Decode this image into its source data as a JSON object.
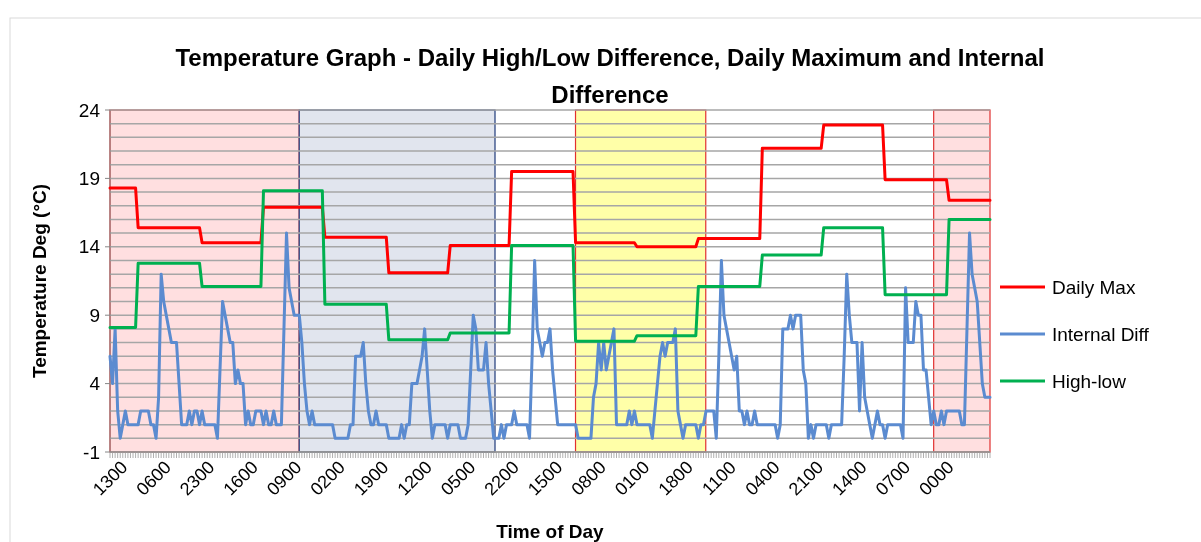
{
  "chart_data": {
    "type": "line",
    "title": "Temperature Graph - Daily High/Low Difference, Daily Maximum and Internal Difference",
    "xlabel": "Time of Day",
    "ylabel": "Temperature Deg (°C)",
    "categories": [
      "1300",
      null,
      null,
      null,
      null,
      null,
      null,
      null,
      null,
      null,
      null,
      null,
      null,
      null,
      null,
      null,
      null,
      "0600",
      null,
      null,
      null,
      null,
      null,
      null,
      null,
      null,
      null,
      null,
      null,
      null,
      null,
      null,
      null,
      null,
      "2300",
      null,
      null,
      null,
      null,
      null,
      null,
      null,
      null,
      null,
      null,
      null,
      null,
      null,
      null,
      null,
      null,
      "1600",
      null,
      null,
      null,
      null,
      null,
      null,
      null,
      null,
      null,
      null,
      null,
      null,
      null,
      null,
      null,
      null,
      "0900",
      null,
      null,
      null,
      null,
      null,
      null,
      null,
      null,
      null,
      null,
      null,
      null,
      null,
      null,
      null,
      null,
      "0200",
      null,
      null,
      null,
      null,
      null,
      null,
      null,
      null,
      null,
      null,
      null,
      null,
      null,
      null,
      null,
      null,
      "1900",
      null,
      null,
      null,
      null,
      null,
      null,
      null,
      null,
      null,
      null,
      null,
      null,
      null,
      null,
      null,
      null,
      "1200",
      null,
      null,
      null,
      null,
      null,
      null,
      null,
      null,
      null,
      null,
      null,
      null,
      null,
      null,
      null,
      null,
      "0500",
      null,
      null,
      null,
      null,
      null,
      null,
      null,
      null,
      null,
      null,
      null,
      null,
      null,
      null,
      null,
      null,
      "2200",
      null,
      null,
      null,
      null,
      null,
      null,
      null,
      null,
      null,
      null,
      null,
      null,
      null,
      null,
      null,
      null,
      "1500",
      null,
      null,
      null,
      null,
      null,
      null,
      null,
      null,
      null,
      null,
      null,
      null,
      null,
      null,
      null,
      null,
      "0800",
      null,
      null,
      null,
      null,
      null,
      null,
      null,
      null,
      null,
      null,
      null,
      null,
      null,
      null,
      null,
      null,
      "0100",
      null,
      null,
      null,
      null,
      null,
      null,
      null,
      null,
      null,
      null,
      null,
      null,
      null,
      null,
      null,
      null,
      "1800",
      null,
      null,
      null,
      null,
      null,
      null,
      null,
      null,
      null,
      null,
      null,
      null,
      null,
      null,
      null,
      null,
      "1100",
      null,
      null,
      null,
      null,
      null,
      null,
      null,
      null,
      null,
      null,
      null,
      null,
      null,
      null,
      null,
      null,
      "0400",
      null,
      null,
      null,
      null,
      null,
      null,
      null,
      null,
      null,
      null,
      null,
      null,
      null,
      null,
      null,
      null,
      "2100",
      null,
      null,
      null,
      null,
      null,
      null,
      null,
      null,
      null,
      null,
      null,
      null,
      null,
      null,
      null,
      null,
      "1400",
      null,
      null,
      null,
      null,
      null,
      null,
      null,
      null,
      null,
      null,
      null,
      null,
      null,
      null,
      null,
      null,
      "0700",
      null,
      null,
      null,
      null,
      null,
      null,
      null,
      null,
      null,
      null,
      null,
      null,
      null,
      null,
      null,
      null,
      "0000",
      null,
      null,
      null,
      null,
      null,
      null,
      null,
      null,
      null,
      null,
      null,
      null,
      null,
      null,
      null,
      null,
      null,
      null,
      null,
      null,
      null
    ],
    "ylim": [
      -1,
      24
    ],
    "yticks": [
      -1,
      {
        "value": 0,
        "label": null
      },
      {
        "value": 1,
        "label": null
      },
      {
        "value": 2,
        "label": null
      },
      {
        "value": 3,
        "label": null
      },
      4,
      {
        "value": 5,
        "label": null
      },
      {
        "value": 6,
        "label": null
      },
      {
        "value": 7,
        "label": null
      },
      {
        "value": 8,
        "label": null
      },
      9,
      {
        "value": 10,
        "label": null
      },
      {
        "value": 11,
        "label": null
      },
      {
        "value": 12,
        "label": null
      },
      {
        "value": 13,
        "label": null
      },
      14,
      {
        "value": 15,
        "label": null
      },
      {
        "value": 16,
        "label": null
      },
      {
        "value": 17,
        "label": null
      },
      {
        "value": 18,
        "label": null
      },
      19,
      {
        "value": 20,
        "label": null
      },
      {
        "value": 21,
        "label": null
      },
      {
        "value": 22,
        "label": null
      },
      {
        "value": 23,
        "label": null
      },
      24
    ],
    "grid": "y",
    "legend": "right",
    "series": [
      {
        "name": "Daily Max",
        "color": "#ff0000",
        "values": [
          18.3,
          18.3,
          18.3,
          18.3,
          18.3,
          18.3,
          18.3,
          18.3,
          18.3,
          18.3,
          18.3,
          15.4,
          15.4,
          15.4,
          15.4,
          15.4,
          15.4,
          15.4,
          15.4,
          15.4,
          15.4,
          15.4,
          15.4,
          15.4,
          15.4,
          15.4,
          15.4,
          15.4,
          15.4,
          15.4,
          15.4,
          15.4,
          15.4,
          15.4,
          15.4,
          15.4,
          14.3,
          14.3,
          14.3,
          14.3,
          14.3,
          14.3,
          14.3,
          14.3,
          14.3,
          14.3,
          14.3,
          14.3,
          14.3,
          14.3,
          14.3,
          14.3,
          14.3,
          14.3,
          14.3,
          14.3,
          14.3,
          14.3,
          14.3,
          14.3,
          16.9,
          16.9,
          16.9,
          16.9,
          16.9,
          16.9,
          16.9,
          16.9,
          16.9,
          16.9,
          16.9,
          16.9,
          16.9,
          16.9,
          16.9,
          16.9,
          16.9,
          16.9,
          16.9,
          16.9,
          16.9,
          16.9,
          16.9,
          16.9,
          14.7,
          14.7,
          14.7,
          14.7,
          14.7,
          14.7,
          14.7,
          14.7,
          14.7,
          14.7,
          14.7,
          14.7,
          14.7,
          14.7,
          14.7,
          14.7,
          14.7,
          14.7,
          14.7,
          14.7,
          14.7,
          14.7,
          14.7,
          14.7,
          14.7,
          12.1,
          12.1,
          12.1,
          12.1,
          12.1,
          12.1,
          12.1,
          12.1,
          12.1,
          12.1,
          12.1,
          12.1,
          12.1,
          12.1,
          12.1,
          12.1,
          12.1,
          12.1,
          12.1,
          12.1,
          12.1,
          12.1,
          12.1,
          12.1,
          14.1,
          14.1,
          14.1,
          14.1,
          14.1,
          14.1,
          14.1,
          14.1,
          14.1,
          14.1,
          14.1,
          14.1,
          14.1,
          14.1,
          14.1,
          14.1,
          14.1,
          14.1,
          14.1,
          14.1,
          14.1,
          14.1,
          14.1,
          14.1,
          19.5,
          19.5,
          19.5,
          19.5,
          19.5,
          19.5,
          19.5,
          19.5,
          19.5,
          19.5,
          19.5,
          19.5,
          19.5,
          19.5,
          19.5,
          19.5,
          19.5,
          19.5,
          19.5,
          19.5,
          19.5,
          19.5,
          19.5,
          19.5,
          19.5,
          14.3,
          14.3,
          14.3,
          14.3,
          14.3,
          14.3,
          14.3,
          14.3,
          14.3,
          14.3,
          14.3,
          14.3,
          14.3,
          14.3,
          14.3,
          14.3,
          14.3,
          14.3,
          14.3,
          14.3,
          14.3,
          14.3,
          14.3,
          14.3,
          14.0,
          14.0,
          14.0,
          14.0,
          14.0,
          14.0,
          14.0,
          14.0,
          14.0,
          14.0,
          14.0,
          14.0,
          14.0,
          14.0,
          14.0,
          14.0,
          14.0,
          14.0,
          14.0,
          14.0,
          14.0,
          14.0,
          14.0,
          14.0,
          14.6,
          14.6,
          14.6,
          14.6,
          14.6,
          14.6,
          14.6,
          14.6,
          14.6,
          14.6,
          14.6,
          14.6,
          14.6,
          14.6,
          14.6,
          14.6,
          14.6,
          14.6,
          14.6,
          14.6,
          14.6,
          14.6,
          14.6,
          14.6,
          14.6,
          21.2,
          21.2,
          21.2,
          21.2,
          21.2,
          21.2,
          21.2,
          21.2,
          21.2,
          21.2,
          21.2,
          21.2,
          21.2,
          21.2,
          21.2,
          21.2,
          21.2,
          21.2,
          21.2,
          21.2,
          21.2,
          21.2,
          21.2,
          21.2,
          22.9,
          22.9,
          22.9,
          22.9,
          22.9,
          22.9,
          22.9,
          22.9,
          22.9,
          22.9,
          22.9,
          22.9,
          22.9,
          22.9,
          22.9,
          22.9,
          22.9,
          22.9,
          22.9,
          22.9,
          22.9,
          22.9,
          22.9,
          22.9,
          18.9,
          18.9,
          18.9,
          18.9,
          18.9,
          18.9,
          18.9,
          18.9,
          18.9,
          18.9,
          18.9,
          18.9,
          18.9,
          18.9,
          18.9,
          18.9,
          18.9,
          18.9,
          18.9,
          18.9,
          18.9,
          18.9,
          18.9,
          18.9,
          18.9,
          17.4,
          17.4,
          17.4,
          17.4,
          17.4,
          17.4,
          17.4,
          17.4,
          17.4,
          17.4,
          17.4,
          17.4,
          17.4,
          17.4,
          17.4,
          17.4,
          17.4
        ]
      },
      {
        "name": "Internal Diff",
        "color": "#5b8bd0",
        "values": [
          6,
          4,
          8,
          2,
          0,
          1,
          2,
          1,
          1,
          1,
          1,
          1,
          2,
          2,
          2,
          2,
          1,
          1,
          0,
          3,
          12,
          10,
          9,
          8,
          7,
          7,
          7,
          4,
          1,
          1,
          1,
          2,
          1,
          2,
          2,
          1,
          2,
          1,
          1,
          1,
          1,
          1,
          0,
          5,
          10,
          9,
          8,
          7,
          7,
          4,
          5,
          4,
          4,
          1,
          2,
          1,
          1,
          2,
          2,
          2,
          1,
          2,
          1,
          1,
          2,
          1,
          1,
          1,
          8,
          15,
          11,
          10,
          9,
          9,
          9,
          7,
          4,
          2,
          1,
          2,
          1,
          1,
          1,
          1,
          1,
          1,
          1,
          1,
          0,
          0,
          0,
          0,
          0,
          0,
          1,
          1,
          6,
          6,
          6,
          7,
          4,
          2,
          1,
          1,
          2,
          1,
          1,
          1,
          1,
          0,
          0,
          0,
          0,
          0,
          1,
          0,
          1,
          1,
          4,
          4,
          4,
          5,
          6,
          8,
          5,
          2,
          0,
          1,
          1,
          1,
          1,
          1,
          0,
          1,
          1,
          1,
          1,
          0,
          0,
          0,
          1,
          5,
          9,
          8,
          5,
          5,
          5,
          7,
          4,
          2,
          0,
          0,
          0,
          1,
          0,
          1,
          1,
          1,
          2,
          1,
          1,
          1,
          1,
          1,
          0,
          6,
          13,
          8,
          7,
          6,
          7,
          7,
          8,
          5,
          3,
          1,
          1,
          1,
          1,
          1,
          1,
          1,
          1,
          0,
          0,
          0,
          0,
          0,
          0,
          3,
          4,
          7,
          5,
          7,
          5,
          6,
          7,
          8,
          1,
          1,
          1,
          1,
          1,
          2,
          1,
          2,
          1,
          1,
          1,
          1,
          1,
          1,
          0,
          2,
          4,
          6,
          7,
          6,
          7,
          7,
          7,
          8,
          2,
          1,
          0,
          1,
          1,
          1,
          1,
          1,
          0,
          1,
          1,
          2,
          2,
          2,
          2,
          0,
          6,
          13,
          9,
          8,
          7,
          6,
          5,
          6,
          2,
          2,
          1,
          2,
          1,
          1,
          2,
          1,
          1,
          1,
          1,
          1,
          1,
          1,
          1,
          0,
          1,
          8,
          8,
          8,
          9,
          8,
          9,
          9,
          9,
          5,
          4,
          0,
          1,
          0,
          1,
          1,
          1,
          1,
          1,
          0,
          1,
          1,
          1,
          1,
          1,
          6,
          12,
          9,
          7,
          7,
          7,
          2,
          7,
          3,
          2,
          1,
          0,
          1,
          2,
          1,
          1,
          0,
          1,
          1,
          1,
          1,
          1,
          1,
          0,
          11,
          7,
          7,
          7,
          10,
          9,
          9,
          5,
          5,
          3,
          1,
          2,
          1,
          1,
          2,
          1,
          2,
          2,
          2,
          2,
          2,
          2,
          1,
          1,
          8,
          15,
          12,
          11,
          10,
          7,
          4,
          3,
          3,
          3
        ]
      },
      {
        "name": "High-low",
        "color": "#00b050",
        "values": [
          8.1,
          8.1,
          8.1,
          8.1,
          8.1,
          8.1,
          8.1,
          8.1,
          8.1,
          8.1,
          8.1,
          12.8,
          12.8,
          12.8,
          12.8,
          12.8,
          12.8,
          12.8,
          12.8,
          12.8,
          12.8,
          12.8,
          12.8,
          12.8,
          12.8,
          12.8,
          12.8,
          12.8,
          12.8,
          12.8,
          12.8,
          12.8,
          12.8,
          12.8,
          12.8,
          12.8,
          11.1,
          11.1,
          11.1,
          11.1,
          11.1,
          11.1,
          11.1,
          11.1,
          11.1,
          11.1,
          11.1,
          11.1,
          11.1,
          11.1,
          11.1,
          11.1,
          11.1,
          11.1,
          11.1,
          11.1,
          11.1,
          11.1,
          11.1,
          11.1,
          18.1,
          18.1,
          18.1,
          18.1,
          18.1,
          18.1,
          18.1,
          18.1,
          18.1,
          18.1,
          18.1,
          18.1,
          18.1,
          18.1,
          18.1,
          18.1,
          18.1,
          18.1,
          18.1,
          18.1,
          18.1,
          18.1,
          18.1,
          18.1,
          9.8,
          9.8,
          9.8,
          9.8,
          9.8,
          9.8,
          9.8,
          9.8,
          9.8,
          9.8,
          9.8,
          9.8,
          9.8,
          9.8,
          9.8,
          9.8,
          9.8,
          9.8,
          9.8,
          9.8,
          9.8,
          9.8,
          9.8,
          9.8,
          9.8,
          7.2,
          7.2,
          7.2,
          7.2,
          7.2,
          7.2,
          7.2,
          7.2,
          7.2,
          7.2,
          7.2,
          7.2,
          7.2,
          7.2,
          7.2,
          7.2,
          7.2,
          7.2,
          7.2,
          7.2,
          7.2,
          7.2,
          7.2,
          7.2,
          7.7,
          7.7,
          7.7,
          7.7,
          7.7,
          7.7,
          7.7,
          7.7,
          7.7,
          7.7,
          7.7,
          7.7,
          7.7,
          7.7,
          7.7,
          7.7,
          7.7,
          7.7,
          7.7,
          7.7,
          7.7,
          7.7,
          7.7,
          7.7,
          14.1,
          14.1,
          14.1,
          14.1,
          14.1,
          14.1,
          14.1,
          14.1,
          14.1,
          14.1,
          14.1,
          14.1,
          14.1,
          14.1,
          14.1,
          14.1,
          14.1,
          14.1,
          14.1,
          14.1,
          14.1,
          14.1,
          14.1,
          14.1,
          14.1,
          7.1,
          7.1,
          7.1,
          7.1,
          7.1,
          7.1,
          7.1,
          7.1,
          7.1,
          7.1,
          7.1,
          7.1,
          7.1,
          7.1,
          7.1,
          7.1,
          7.1,
          7.1,
          7.1,
          7.1,
          7.1,
          7.1,
          7.1,
          7.1,
          7.5,
          7.5,
          7.5,
          7.5,
          7.5,
          7.5,
          7.5,
          7.5,
          7.5,
          7.5,
          7.5,
          7.5,
          7.5,
          7.5,
          7.5,
          7.5,
          7.5,
          7.5,
          7.5,
          7.5,
          7.5,
          7.5,
          7.5,
          7.5,
          11.1,
          11.1,
          11.1,
          11.1,
          11.1,
          11.1,
          11.1,
          11.1,
          11.1,
          11.1,
          11.1,
          11.1,
          11.1,
          11.1,
          11.1,
          11.1,
          11.1,
          11.1,
          11.1,
          11.1,
          11.1,
          11.1,
          11.1,
          11.1,
          11.1,
          13.4,
          13.4,
          13.4,
          13.4,
          13.4,
          13.4,
          13.4,
          13.4,
          13.4,
          13.4,
          13.4,
          13.4,
          13.4,
          13.4,
          13.4,
          13.4,
          13.4,
          13.4,
          13.4,
          13.4,
          13.4,
          13.4,
          13.4,
          13.4,
          15.4,
          15.4,
          15.4,
          15.4,
          15.4,
          15.4,
          15.4,
          15.4,
          15.4,
          15.4,
          15.4,
          15.4,
          15.4,
          15.4,
          15.4,
          15.4,
          15.4,
          15.4,
          15.4,
          15.4,
          15.4,
          15.4,
          15.4,
          15.4,
          10.5,
          10.5,
          10.5,
          10.5,
          10.5,
          10.5,
          10.5,
          10.5,
          10.5,
          10.5,
          10.5,
          10.5,
          10.5,
          10.5,
          10.5,
          10.5,
          10.5,
          10.5,
          10.5,
          10.5,
          10.5,
          10.5,
          10.5,
          10.5,
          10.5,
          16.0,
          16.0,
          16.0,
          16.0,
          16.0,
          16.0,
          16.0,
          16.0,
          16.0,
          16.0,
          16.0,
          16.0,
          16.0,
          16.0,
          16.0,
          16.0,
          16.0
        ]
      }
    ]
  }
}
